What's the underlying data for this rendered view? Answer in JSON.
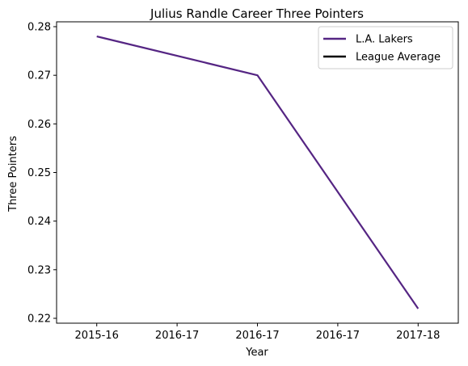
{
  "chart_data": {
    "type": "line",
    "title": "Julius Randle Career Three Pointers",
    "xlabel": "Year",
    "ylabel": "Three Pointers",
    "x_tick_labels": [
      "2015-16",
      "2016-17",
      "2016-17",
      "2016-17",
      "2017-18"
    ],
    "ylim": [
      0.219,
      0.281
    ],
    "y_ticks": [
      0.22,
      0.23,
      0.24,
      0.25,
      0.26,
      0.27,
      0.28
    ],
    "series": [
      {
        "name": "L.A. Lakers",
        "color": "#552583",
        "points": [
          {
            "x": 0,
            "y": 0.278
          },
          {
            "x": 1,
            "y": 0.27
          },
          {
            "x": 2,
            "y": 0.222
          }
        ]
      },
      {
        "name": "League Average",
        "color": "#000000",
        "points": []
      }
    ],
    "grid": false,
    "legend": "top-right"
  }
}
